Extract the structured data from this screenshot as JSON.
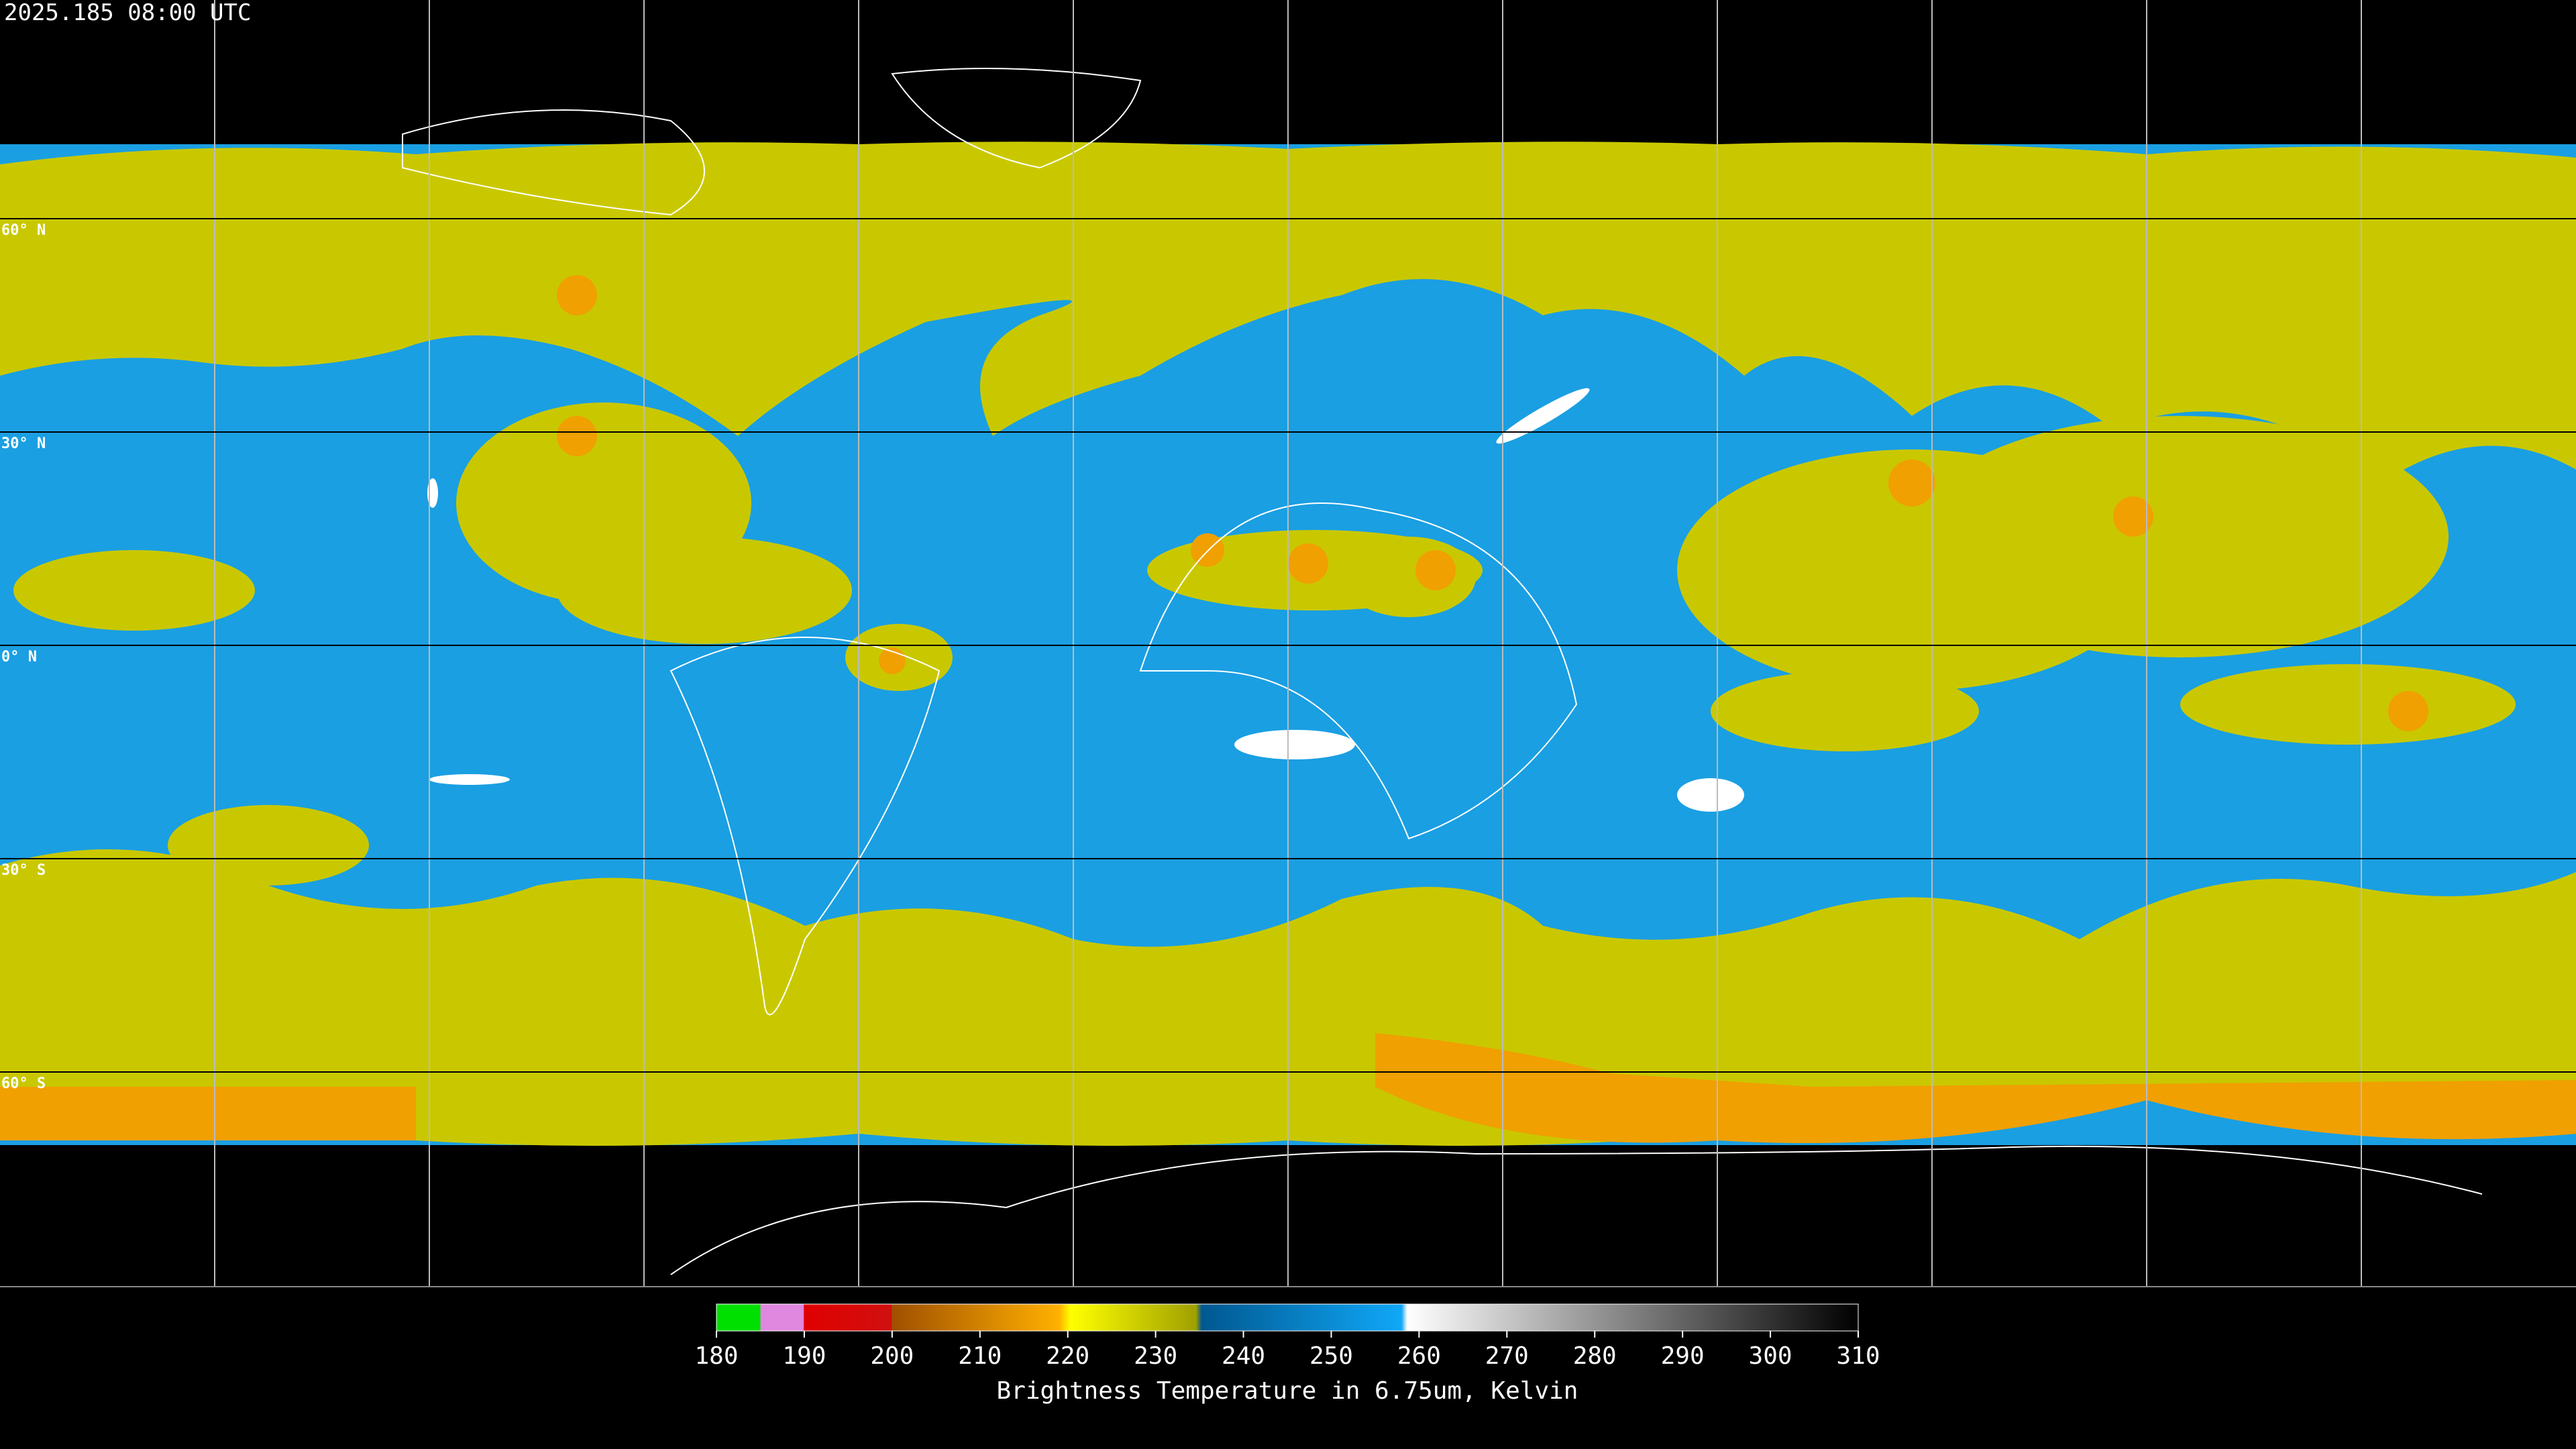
{
  "header": {
    "timestamp": "2025.185 08:00 UTC"
  },
  "map": {
    "latitude_labels": [
      {
        "value": 60,
        "label": "60° N"
      },
      {
        "value": 30,
        "label": "30° N"
      },
      {
        "value": 0,
        "label": "0° N"
      },
      {
        "value": -30,
        "label": "30° S"
      },
      {
        "value": -60,
        "label": "60° S"
      }
    ]
  },
  "colorbar": {
    "title": "Brightness Temperature in 6.75um, Kelvin",
    "range": [
      180,
      310
    ],
    "ticks": [
      180,
      190,
      200,
      210,
      220,
      230,
      240,
      250,
      260,
      270,
      280,
      290,
      300,
      310
    ]
  }
}
